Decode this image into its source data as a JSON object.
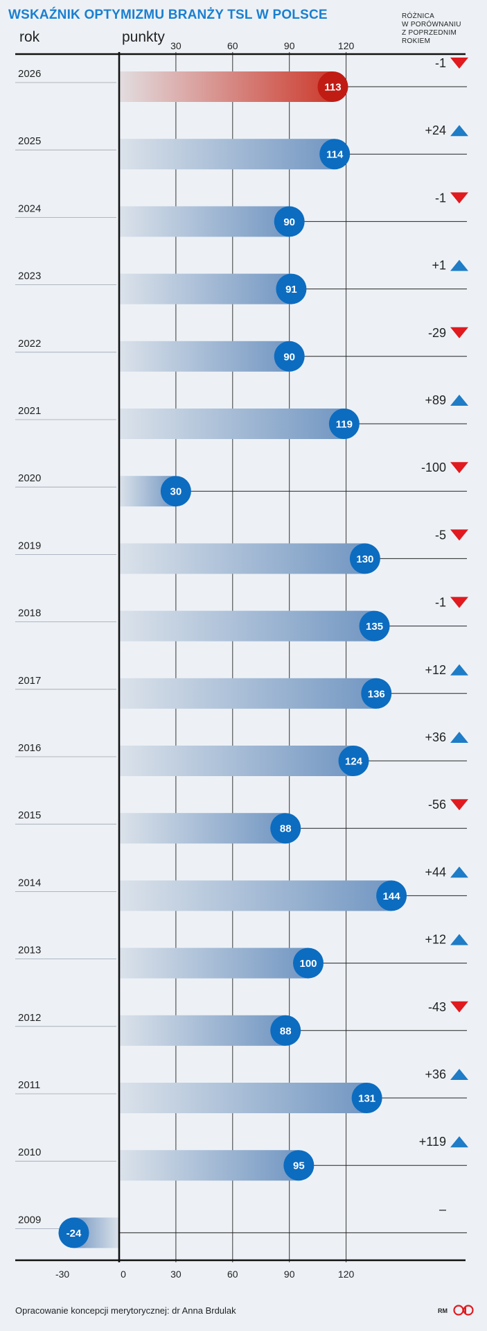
{
  "chart_data": {
    "type": "bar",
    "title": "WSKAŹNIK OPTYMIZMU BRANŻY TSL W POLSCE",
    "xlabel": "punkty",
    "ylabel": "rok",
    "diff_header": [
      "RÓŻNICA",
      "W PORÓWNANIU",
      "Z POPRZEDNIM",
      "ROKIEM"
    ],
    "top_ticks": [
      "30",
      "60",
      "90",
      "120"
    ],
    "bottom_ticks": [
      "-30",
      "0",
      "30",
      "60",
      "90",
      "120"
    ],
    "xlim": [
      -30,
      180
    ],
    "categories": [
      "2026",
      "2025",
      "2024",
      "2023",
      "2022",
      "2021",
      "2020",
      "2019",
      "2018",
      "2017",
      "2016",
      "2015",
      "2014",
      "2013",
      "2012",
      "2011",
      "2010",
      "2009"
    ],
    "values": [
      113,
      114,
      90,
      91,
      90,
      119,
      30,
      130,
      135,
      136,
      124,
      88,
      144,
      100,
      88,
      131,
      95,
      -24
    ],
    "value_labels": [
      "113",
      "114",
      "90",
      "91",
      "90",
      "119",
      "30",
      "130",
      "135",
      "136",
      "124",
      "88",
      "144",
      "100",
      "88",
      "131",
      "95",
      "-24"
    ],
    "differences": [
      "-1",
      "+24",
      "-1",
      "+1",
      "-29",
      "+89",
      "-100",
      "-5",
      "-1",
      "+12",
      "+36",
      "-56",
      "+44",
      "+12",
      "-43",
      "+36",
      "+119",
      "–"
    ],
    "highlight_category": "2026",
    "grid": true
  },
  "colors": {
    "accent": "#1a7fd0",
    "marker": "#0c6cc0",
    "highlight": "#c01c14",
    "up": "#1f7cc6",
    "down": "#e01a1f",
    "background": "#edf1f6"
  },
  "footer": {
    "source": "Opracowanie koncepcji merytorycznej: dr Anna Brdulak",
    "initials": "RM",
    "logo": "dgp-logo"
  }
}
